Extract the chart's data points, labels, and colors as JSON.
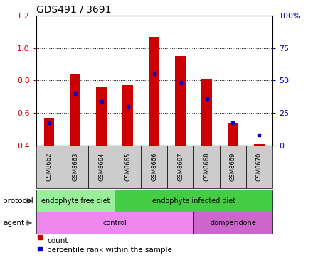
{
  "title": "GDS491 / 3691",
  "samples": [
    "GSM8662",
    "GSM8663",
    "GSM8664",
    "GSM8665",
    "GSM8666",
    "GSM8667",
    "GSM8668",
    "GSM8669",
    "GSM8670"
  ],
  "count_values": [
    0.57,
    0.84,
    0.76,
    0.77,
    1.07,
    0.95,
    0.81,
    0.54,
    0.41
  ],
  "percentile_values": [
    0.54,
    0.72,
    0.67,
    0.64,
    0.84,
    0.79,
    0.69,
    0.54,
    0.465
  ],
  "ymin": 0.4,
  "ymax": 1.2,
  "yticks_left": [
    0.4,
    0.6,
    0.8,
    1.0,
    1.2
  ],
  "yticks_right": [
    0,
    25,
    50,
    75,
    100
  ],
  "bar_color": "#cc0000",
  "dot_color": "#0000cc",
  "protocol_groups": [
    {
      "label": "endophyte free diet",
      "start": 0,
      "end": 3,
      "color": "#99ee99"
    },
    {
      "label": "endophyte infected diet",
      "start": 3,
      "end": 9,
      "color": "#44cc44"
    }
  ],
  "agent_groups": [
    {
      "label": "control",
      "start": 0,
      "end": 6,
      "color": "#ee88ee"
    },
    {
      "label": "domperidone",
      "start": 6,
      "end": 9,
      "color": "#cc66cc"
    }
  ],
  "protocol_label": "protocol",
  "agent_label": "agent",
  "legend_count_label": "count",
  "legend_pct_label": "percentile rank within the sample",
  "bg_color": "#ffffff",
  "tick_label_color_left": "#cc0000",
  "tick_label_color_right": "#0000cc",
  "bar_width": 0.4,
  "sample_bg_color": "#cccccc"
}
